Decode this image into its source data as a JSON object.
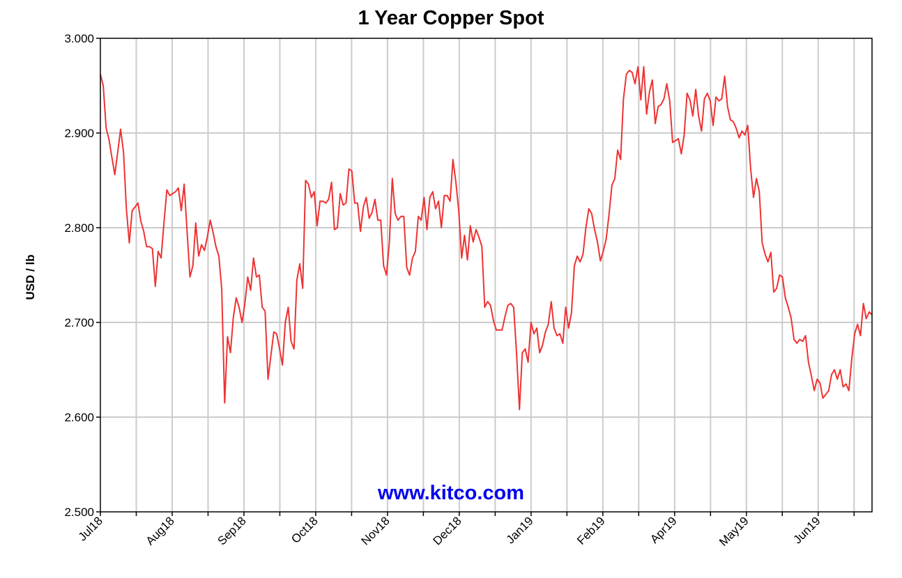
{
  "chart_data": {
    "type": "line",
    "title": "1 Year Copper Spot",
    "ylabel": "USD / lb",
    "xlabel": "",
    "ylim": [
      2.5,
      3.0
    ],
    "y_ticks": [
      "2.500",
      "2.600",
      "2.700",
      "2.800",
      "2.900",
      "3.000"
    ],
    "x_tick_labels": [
      "Jul18",
      "Aug18",
      "Sep18",
      "Oct18",
      "Nov18",
      "Dec18",
      "Jan19",
      "Feb19",
      "Apr19",
      "May19",
      "Jun19"
    ],
    "grid": true,
    "legend": "none",
    "line_color": "#ee3333",
    "watermark": "www.kitco.com",
    "series": [
      {
        "values": [
          2.962,
          2.95,
          2.905,
          2.893,
          2.874,
          2.856,
          2.88,
          2.904,
          2.88,
          2.82,
          2.784,
          2.818,
          2.822,
          2.826,
          2.807,
          2.796,
          2.78,
          2.78,
          2.778,
          2.738,
          2.775,
          2.768,
          2.805,
          2.84,
          2.834,
          2.836,
          2.838,
          2.842,
          2.818,
          2.846,
          2.796,
          2.748,
          2.76,
          2.805,
          2.77,
          2.782,
          2.776,
          2.79,
          2.808,
          2.795,
          2.78,
          2.77,
          2.735,
          2.615,
          2.685,
          2.668,
          2.705,
          2.726,
          2.716,
          2.7,
          2.72,
          2.748,
          2.734,
          2.768,
          2.748,
          2.75,
          2.716,
          2.712,
          2.64,
          2.665,
          2.69,
          2.688,
          2.672,
          2.655,
          2.7,
          2.716,
          2.68,
          2.672,
          2.745,
          2.762,
          2.736,
          2.85,
          2.846,
          2.832,
          2.838,
          2.802,
          2.828,
          2.828,
          2.826,
          2.83,
          2.848,
          2.798,
          2.8,
          2.836,
          2.824,
          2.826,
          2.862,
          2.86,
          2.826,
          2.826,
          2.796,
          2.822,
          2.832,
          2.81,
          2.816,
          2.83,
          2.808,
          2.808,
          2.76,
          2.75,
          2.785,
          2.852,
          2.815,
          2.808,
          2.812,
          2.812,
          2.758,
          2.75,
          2.768,
          2.775,
          2.812,
          2.808,
          2.832,
          2.798,
          2.832,
          2.838,
          2.82,
          2.828,
          2.8,
          2.834,
          2.834,
          2.828,
          2.872,
          2.848,
          2.818,
          2.768,
          2.792,
          2.766,
          2.802,
          2.785,
          2.798,
          2.79,
          2.78,
          2.716,
          2.722,
          2.718,
          2.702,
          2.692,
          2.692,
          2.692,
          2.706,
          2.718,
          2.72,
          2.716,
          2.668,
          2.608,
          2.668,
          2.672,
          2.658,
          2.7,
          2.688,
          2.694,
          2.668,
          2.676,
          2.69,
          2.698,
          2.722,
          2.694,
          2.686,
          2.688,
          2.678,
          2.716,
          2.694,
          2.71,
          2.76,
          2.77,
          2.764,
          2.772,
          2.8,
          2.82,
          2.815,
          2.798,
          2.785,
          2.765,
          2.775,
          2.788,
          2.814,
          2.845,
          2.852,
          2.882,
          2.872,
          2.936,
          2.962,
          2.966,
          2.964,
          2.952,
          2.97,
          2.935,
          2.97,
          2.92,
          2.944,
          2.956,
          2.91,
          2.928,
          2.93,
          2.936,
          2.952,
          2.934,
          2.89,
          2.892,
          2.894,
          2.878,
          2.898,
          2.942,
          2.935,
          2.918,
          2.946,
          2.918,
          2.902,
          2.936,
          2.942,
          2.934,
          2.908,
          2.938,
          2.934,
          2.936,
          2.96,
          2.928,
          2.914,
          2.912,
          2.905,
          2.895,
          2.902,
          2.898,
          2.908,
          2.862,
          2.832,
          2.852,
          2.838,
          2.784,
          2.772,
          2.764,
          2.774,
          2.732,
          2.736,
          2.75,
          2.748,
          2.726,
          2.716,
          2.705,
          2.682,
          2.678,
          2.682,
          2.68,
          2.686,
          2.658,
          2.644,
          2.628,
          2.64,
          2.636,
          2.62,
          2.624,
          2.628,
          2.645,
          2.65,
          2.64,
          2.65,
          2.632,
          2.635,
          2.628,
          2.662,
          2.688,
          2.698,
          2.686,
          2.72,
          2.704,
          2.711,
          2.708
        ]
      }
    ]
  }
}
